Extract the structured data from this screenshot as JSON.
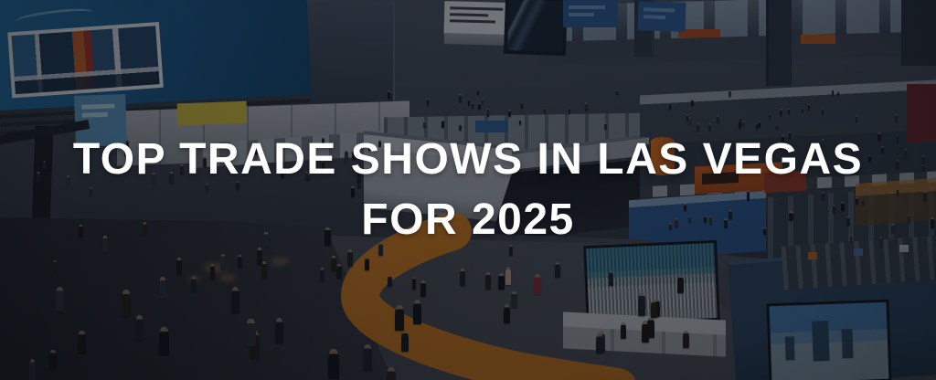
{
  "hero": {
    "title_line1": "TOP TRADE SHOWS IN LAS VEGAS",
    "title_line2": "FOR 2025"
  },
  "scene": {
    "subject": "Aerial view of a crowded trade show exhibition hall with booths, hanging signs, window wall, large display screens and an orange carpet aisle"
  },
  "colors": {
    "title": "#ffffff",
    "overlay_dark": "#0a0c11",
    "carpet_orange": "#e0821a",
    "booth_blue": "#2a5a94",
    "hall_blue_wall": "#17598c",
    "screen_teal": "#3f93b2",
    "floor_gray": "#42474f"
  }
}
